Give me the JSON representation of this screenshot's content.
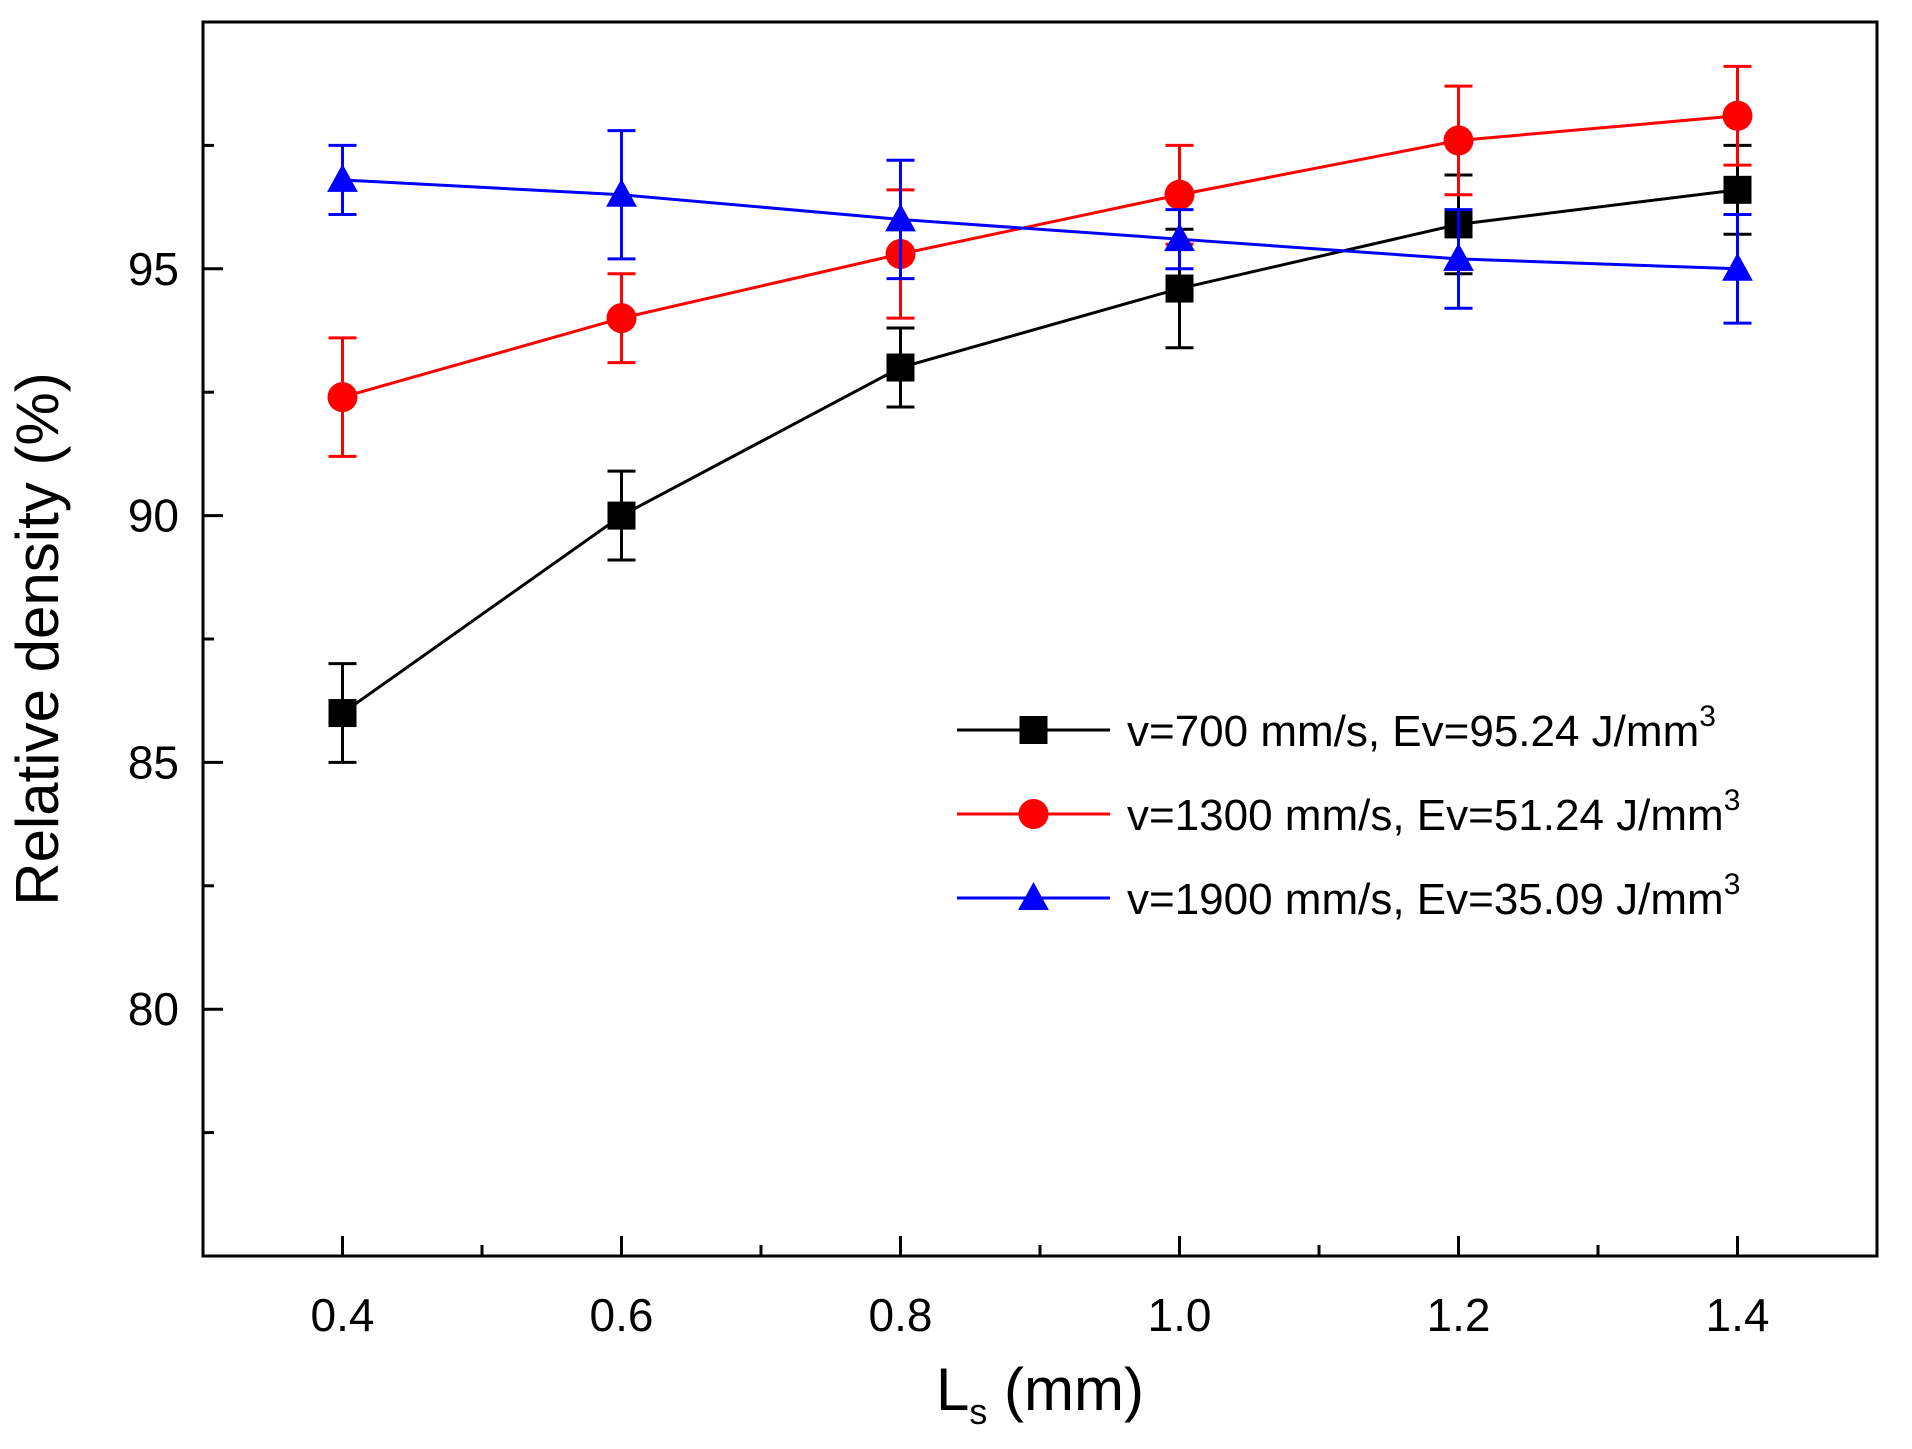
{
  "chart_data": {
    "type": "line",
    "xlabel": "L",
    "xlabel_sub": "s",
    "xlabel_suffix": " (mm)",
    "ylabel": "Relative density (%)",
    "xlim": [
      0.3,
      1.5
    ],
    "ylim": [
      75,
      100
    ],
    "x_ticks": [
      0.4,
      0.6,
      0.8,
      1.0,
      1.2,
      1.4
    ],
    "x_tick_labels": [
      "0.4",
      "0.6",
      "0.8",
      "1.0",
      "1.2",
      "1.4"
    ],
    "x_minor_ticks": [
      0.5,
      0.7,
      0.9,
      1.1,
      1.3
    ],
    "y_ticks": [
      80,
      85,
      90,
      95
    ],
    "y_tick_labels": [
      "80",
      "85",
      "90",
      "95"
    ],
    "y_minor_ticks": [
      77.5,
      82.5,
      87.5,
      92.5,
      97.5
    ],
    "grid": false,
    "legend_position": "center-right",
    "x": [
      0.4,
      0.6,
      0.8,
      1.0,
      1.2,
      1.4
    ],
    "series": [
      {
        "name": "v=700 mm/s, Ev=95.24 J/mm",
        "name_sup": "3",
        "color": "#000000",
        "marker": "square",
        "values": [
          86.0,
          90.0,
          93.0,
          94.6,
          95.9,
          96.6
        ],
        "errors": [
          1.0,
          0.9,
          0.8,
          1.2,
          1.0,
          0.9
        ]
      },
      {
        "name": "v=1300 mm/s, Ev=51.24 J/mm",
        "name_sup": "3",
        "color": "#ff0000",
        "marker": "circle",
        "values": [
          92.4,
          94.0,
          95.3,
          96.5,
          97.6,
          98.1
        ],
        "errors": [
          1.2,
          0.9,
          1.3,
          1.0,
          1.1,
          1.0
        ]
      },
      {
        "name": "v=1900 mm/s, Ev=35.09 J/mm",
        "name_sup": "3",
        "color": "#0000ff",
        "marker": "triangle",
        "values": [
          96.8,
          96.5,
          96.0,
          95.6,
          95.2,
          95.0
        ],
        "errors": [
          0.7,
          1.3,
          1.2,
          0.6,
          1.0,
          1.1
        ]
      }
    ]
  }
}
